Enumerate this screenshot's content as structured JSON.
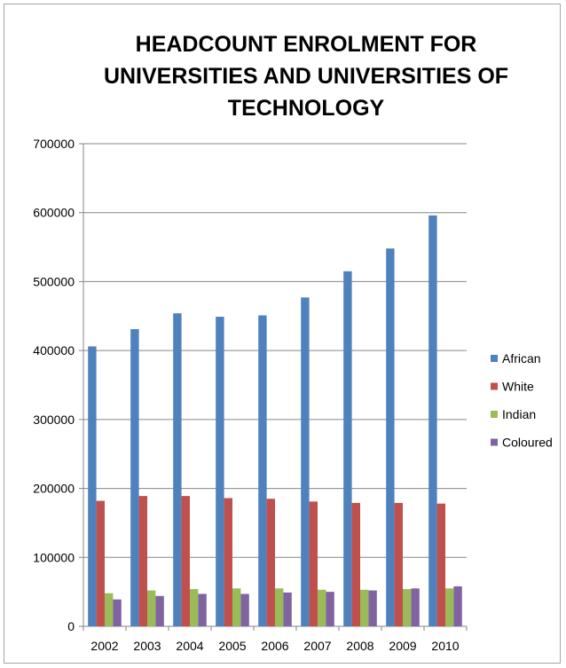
{
  "chart_data": {
    "type": "bar",
    "title_lines": [
      "HEADCOUNT ENROLMENT FOR",
      "UNIVERSITIES AND UNIVERSITIES OF",
      "TECHNOLOGY"
    ],
    "categories": [
      "2002",
      "2003",
      "2004",
      "2005",
      "2006",
      "2007",
      "2008",
      "2009",
      "2010"
    ],
    "ylim": [
      0,
      700000
    ],
    "yticks": [
      "0",
      "100000",
      "200000",
      "300000",
      "400000",
      "500000",
      "600000",
      "700000"
    ],
    "grid": true,
    "legend_position": "right",
    "series": [
      {
        "name": "African",
        "color": "#4f81bd",
        "values": [
          406000,
          431000,
          454000,
          449000,
          451000,
          477000,
          515000,
          548000,
          596000
        ]
      },
      {
        "name": "White",
        "color": "#c0504d",
        "values": [
          182000,
          189000,
          189000,
          186000,
          185000,
          181000,
          179000,
          179000,
          178000
        ]
      },
      {
        "name": "Indian",
        "color": "#9bbb59",
        "values": [
          48000,
          52000,
          54000,
          55000,
          55000,
          53000,
          53000,
          54000,
          55000
        ]
      },
      {
        "name": "Coloured",
        "color": "#8064a2",
        "values": [
          39000,
          44000,
          47000,
          47000,
          49000,
          50000,
          52000,
          55000,
          58000
        ]
      }
    ]
  }
}
